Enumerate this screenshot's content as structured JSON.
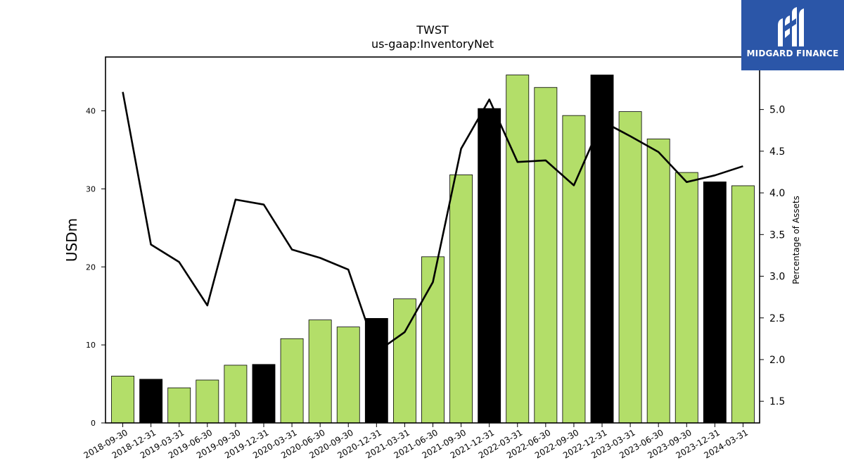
{
  "chart_data": {
    "type": "bar",
    "title": "TWST",
    "subtitle": "us-gaap:InventoryNet",
    "ylabel": "USDm",
    "y2label": "Percentage of Assets",
    "ylim": [
      0,
      46.9
    ],
    "y2lim": [
      1.24,
      5.63
    ],
    "y_ticks": [
      0,
      10,
      20,
      30,
      40
    ],
    "y2_ticks": [
      "1.5",
      "2.0",
      "2.5",
      "3.0",
      "3.5",
      "4.0",
      "4.5",
      "5.0"
    ],
    "categories": [
      "2018-09-30",
      "2018-12-31",
      "2019-03-31",
      "2019-06-30",
      "2019-09-30",
      "2019-12-31",
      "2020-03-31",
      "2020-06-30",
      "2020-09-30",
      "2020-12-31",
      "2021-03-31",
      "2021-06-30",
      "2021-09-30",
      "2021-12-31",
      "2022-03-31",
      "2022-06-30",
      "2022-09-30",
      "2022-12-31",
      "2023-03-31",
      "2023-06-30",
      "2023-09-30",
      "2023-12-31",
      "2024-03-31"
    ],
    "series": [
      {
        "kind": "bar",
        "values": [
          6.0,
          5.6,
          4.5,
          5.5,
          7.4,
          7.5,
          10.8,
          13.2,
          12.3,
          13.4,
          15.9,
          21.3,
          31.8,
          40.3,
          44.6,
          43.0,
          39.4,
          44.6,
          39.9,
          36.4,
          32.1,
          30.9,
          30.4
        ],
        "color_quarterly": "#b3de69",
        "color_yearend": "#000000"
      },
      {
        "kind": "line",
        "axis": "right",
        "values": [
          5.21,
          3.38,
          3.17,
          2.65,
          3.92,
          3.86,
          3.32,
          3.22,
          3.08,
          2.09,
          2.33,
          2.93,
          4.53,
          5.12,
          4.37,
          4.39,
          4.09,
          4.86,
          4.68,
          4.49,
          4.13,
          4.21,
          4.32
        ],
        "color": "#000000"
      }
    ],
    "grid": false,
    "legend": "none"
  },
  "logo": {
    "text": "MIDGARD FINANCE",
    "color": "#2b56a8"
  }
}
